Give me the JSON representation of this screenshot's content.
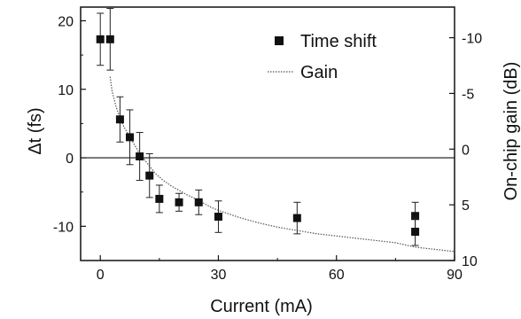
{
  "chart_data": {
    "type": "scatter",
    "xlabel": "Current (mA)",
    "ylabel": "Δt (fs)",
    "y2label": "On-chip gain (dB)",
    "xlim": [
      -5,
      90
    ],
    "ylim": [
      -15,
      22
    ],
    "y2lim": [
      10,
      -12.75
    ],
    "xticks": [
      0,
      30,
      60,
      90
    ],
    "yticks": [
      -10,
      0,
      10,
      20
    ],
    "y2ticks": [
      -10,
      -5,
      0,
      5,
      10
    ],
    "zero_line": true,
    "legend_position": "top-right",
    "series": [
      {
        "name": "Time shift",
        "marker": "square",
        "color": "#111111",
        "points": [
          {
            "x": 0,
            "y": 17.3,
            "err": 3.8
          },
          {
            "x": 2.5,
            "y": 17.3,
            "err": 4.5
          },
          {
            "x": 5,
            "y": 5.6,
            "err": 3.3
          },
          {
            "x": 7.5,
            "y": 3.0,
            "err": 4.0
          },
          {
            "x": 10,
            "y": 0.2,
            "err": 3.5
          },
          {
            "x": 12.5,
            "y": -2.6,
            "err": 3.2
          },
          {
            "x": 15,
            "y": -6.0,
            "err": 2.0
          },
          {
            "x": 20,
            "y": -6.5,
            "err": 1.3
          },
          {
            "x": 25,
            "y": -6.5,
            "err": 1.8
          },
          {
            "x": 30,
            "y": -8.6,
            "err": 2.3
          },
          {
            "x": 50,
            "y": -8.8,
            "err": 2.3
          },
          {
            "x": 80,
            "y": -8.5,
            "err": 2.0
          },
          {
            "x": 80,
            "y": -10.8,
            "err": 2.0
          }
        ]
      },
      {
        "name": "Gain",
        "style": "dotted-line",
        "color": "#555555",
        "x": [
          2.5,
          3,
          4,
          5,
          6,
          7,
          8,
          9,
          10,
          12,
          14,
          16,
          18,
          20,
          22,
          25,
          28,
          30,
          35,
          40,
          45,
          50,
          55,
          60,
          65,
          70,
          75,
          80,
          85,
          90
        ],
        "y": [
          -6.5,
          -5.2,
          -3.8,
          -2.8,
          -2.0,
          -1.4,
          -0.8,
          -0.2,
          0.4,
          1.3,
          2.2,
          2.8,
          3.3,
          3.7,
          4.1,
          4.6,
          5.2,
          5.5,
          6.1,
          6.6,
          7.0,
          7.3,
          7.6,
          7.8,
          8.0,
          8.2,
          8.4,
          8.8,
          9.0,
          9.2
        ]
      }
    ]
  }
}
